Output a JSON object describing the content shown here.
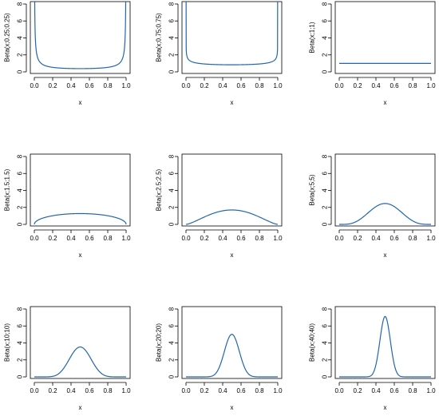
{
  "style": {
    "curve_color": "#2166ac",
    "axis_color": "#000000"
  },
  "chart_data": [
    {
      "type": "line",
      "alpha": 0.25,
      "beta": 0.25,
      "xlabel": "x",
      "ylabel": "Beta(x;0.25;0.25)",
      "xlim": [
        0,
        1
      ],
      "ylim": [
        0,
        8
      ],
      "xticks": [
        "0.0",
        "0.2",
        "0.4",
        "0.6",
        "0.8",
        "1.0"
      ],
      "yticks": [
        "0",
        "2",
        "4",
        "6",
        "8"
      ]
    },
    {
      "type": "line",
      "alpha": 0.75,
      "beta": 0.75,
      "xlabel": "x",
      "ylabel": "Beta(x;0.75;0.75)",
      "xlim": [
        0,
        1
      ],
      "ylim": [
        0,
        8
      ],
      "xticks": [
        "0.0",
        "0.2",
        "0.4",
        "0.6",
        "0.8",
        "1.0"
      ],
      "yticks": [
        "0",
        "2",
        "4",
        "6",
        "8"
      ]
    },
    {
      "type": "line",
      "alpha": 1,
      "beta": 1,
      "xlabel": "x",
      "ylabel": "Beta(x;1;1)",
      "xlim": [
        0,
        1
      ],
      "ylim": [
        0,
        8
      ],
      "xticks": [
        "0.0",
        "0.2",
        "0.4",
        "0.6",
        "0.8",
        "1.0"
      ],
      "yticks": [
        "0",
        "2",
        "4",
        "6",
        "8"
      ]
    },
    {
      "type": "line",
      "alpha": 1.5,
      "beta": 1.5,
      "xlabel": "x",
      "ylabel": "Beta(x;1.5;1.5)",
      "xlim": [
        0,
        1
      ],
      "ylim": [
        0,
        8
      ],
      "xticks": [
        "0.0",
        "0.2",
        "0.4",
        "0.6",
        "0.8",
        "1.0"
      ],
      "yticks": [
        "0",
        "2",
        "4",
        "6",
        "8"
      ]
    },
    {
      "type": "line",
      "alpha": 2.5,
      "beta": 2.5,
      "xlabel": "x",
      "ylabel": "Beta(x;2.5;2.5)",
      "xlim": [
        0,
        1
      ],
      "ylim": [
        0,
        8
      ],
      "xticks": [
        "0.0",
        "0.2",
        "0.4",
        "0.6",
        "0.8",
        "1.0"
      ],
      "yticks": [
        "0",
        "2",
        "4",
        "6",
        "8"
      ]
    },
    {
      "type": "line",
      "alpha": 5,
      "beta": 5,
      "xlabel": "x",
      "ylabel": "Beta(x;5;5)",
      "xlim": [
        0,
        1
      ],
      "ylim": [
        0,
        8
      ],
      "xticks": [
        "0.0",
        "0.2",
        "0.4",
        "0.6",
        "0.8",
        "1.0"
      ],
      "yticks": [
        "0",
        "2",
        "4",
        "6",
        "8"
      ]
    },
    {
      "type": "line",
      "alpha": 10,
      "beta": 10,
      "xlabel": "x",
      "ylabel": "Beta(x;10;10)",
      "xlim": [
        0,
        1
      ],
      "ylim": [
        0,
        8
      ],
      "xticks": [
        "0.0",
        "0.2",
        "0.4",
        "0.6",
        "0.8",
        "1.0"
      ],
      "yticks": [
        "0",
        "2",
        "4",
        "6",
        "8"
      ]
    },
    {
      "type": "line",
      "alpha": 20,
      "beta": 20,
      "xlabel": "x",
      "ylabel": "Beta(x;20;20)",
      "xlim": [
        0,
        1
      ],
      "ylim": [
        0,
        8
      ],
      "xticks": [
        "0.0",
        "0.2",
        "0.4",
        "0.6",
        "0.8",
        "1.0"
      ],
      "yticks": [
        "0",
        "2",
        "4",
        "6",
        "8"
      ]
    },
    {
      "type": "line",
      "alpha": 40,
      "beta": 40,
      "xlabel": "x",
      "ylabel": "Beta(x;40;40)",
      "xlim": [
        0,
        1
      ],
      "ylim": [
        0,
        8
      ],
      "xticks": [
        "0.0",
        "0.2",
        "0.4",
        "0.6",
        "0.8",
        "1.0"
      ],
      "yticks": [
        "0",
        "2",
        "4",
        "6",
        "8"
      ]
    }
  ]
}
